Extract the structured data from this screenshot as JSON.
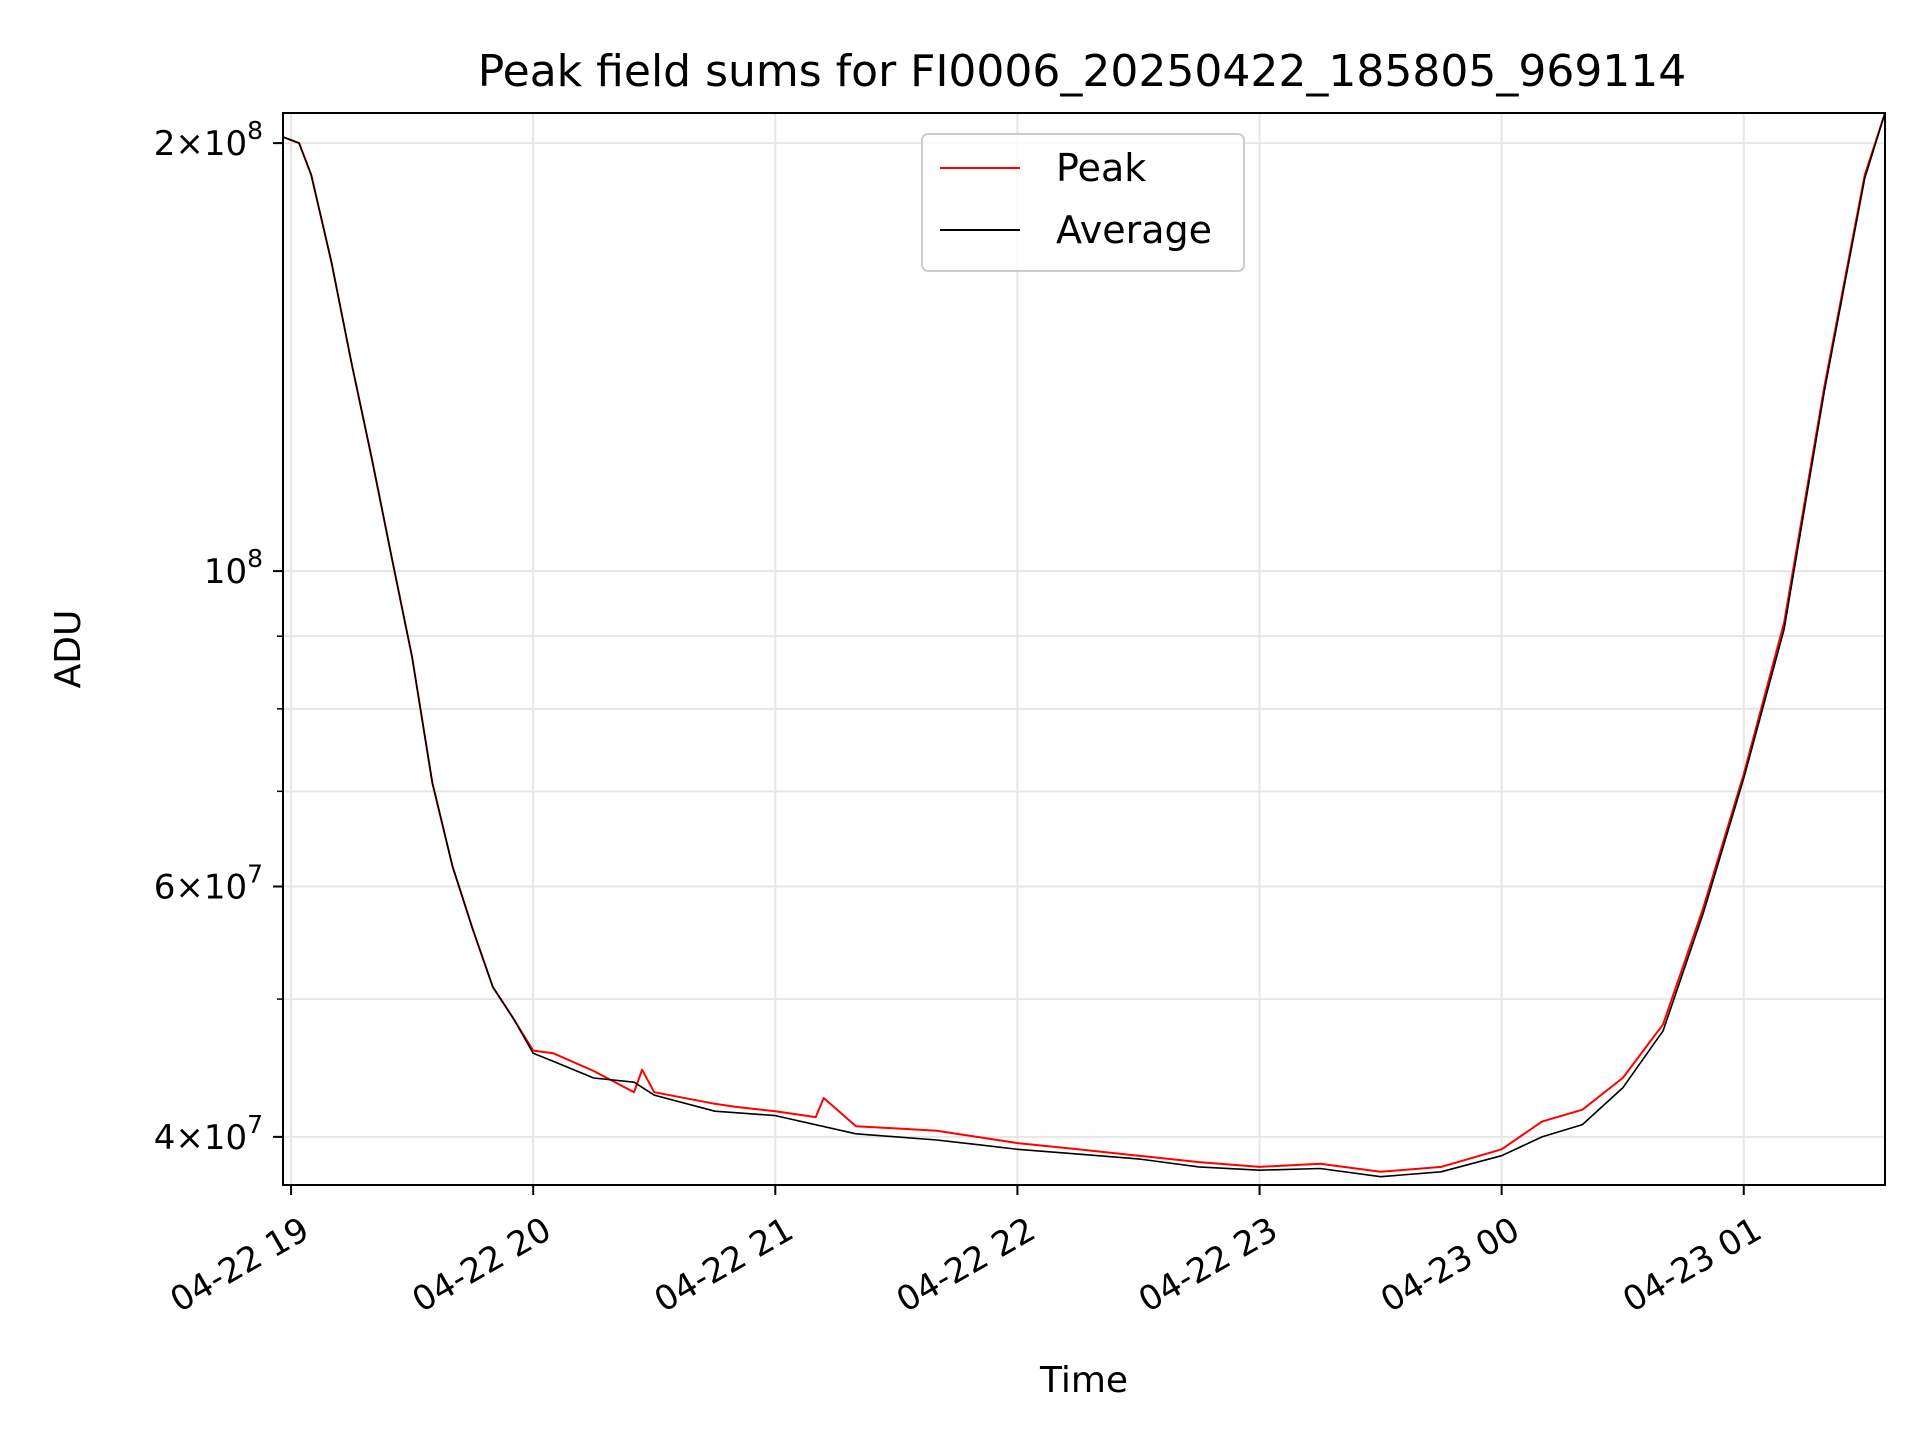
{
  "chart_data": {
    "type": "line",
    "title": "Peak field sums for FI0006_20250422_185805_969114",
    "xlabel": "Time",
    "ylabel": "ADU",
    "y_scale": "log",
    "grid": true,
    "legend_position": "top-center",
    "xlim": [
      "2025-04-22 18:58",
      "2025-04-23 01:35"
    ],
    "ylim": [
      37000000,
      210000000
    ],
    "x_ticks": [
      {
        "t": "2025-04-22 19:00",
        "label": "04-22 19"
      },
      {
        "t": "2025-04-22 20:00",
        "label": "04-22 20"
      },
      {
        "t": "2025-04-22 21:00",
        "label": "04-22 21"
      },
      {
        "t": "2025-04-22 22:00",
        "label": "04-22 22"
      },
      {
        "t": "2025-04-22 23:00",
        "label": "04-22 23"
      },
      {
        "t": "2025-04-23 00:00",
        "label": "04-23 00"
      },
      {
        "t": "2025-04-23 01:00",
        "label": "04-23 01"
      }
    ],
    "y_ticks": [
      {
        "value": 40000000,
        "mant": "4",
        "exp": "7"
      },
      {
        "value": 60000000,
        "mant": "6",
        "exp": "7"
      },
      {
        "value": 100000000,
        "mant": "",
        "exp": "8"
      },
      {
        "value": 200000000,
        "mant": "2",
        "exp": "8"
      }
    ],
    "y_minor_ticks": [
      50000000,
      70000000,
      80000000,
      90000000
    ],
    "series": [
      {
        "name": "Peak",
        "color": "#ff0000",
        "x": [
          "2025-04-22 18:58",
          "2025-04-22 19:02",
          "2025-04-22 19:05",
          "2025-04-22 19:10",
          "2025-04-22 19:15",
          "2025-04-22 19:20",
          "2025-04-22 19:25",
          "2025-04-22 19:30",
          "2025-04-22 19:35",
          "2025-04-22 19:40",
          "2025-04-22 19:45",
          "2025-04-22 19:50",
          "2025-04-22 19:55",
          "2025-04-22 20:00",
          "2025-04-22 20:05",
          "2025-04-22 20:15",
          "2025-04-22 20:25",
          "2025-04-22 20:27",
          "2025-04-22 20:30",
          "2025-04-22 20:45",
          "2025-04-22 20:50",
          "2025-04-22 21:00",
          "2025-04-22 21:10",
          "2025-04-22 21:12",
          "2025-04-22 21:20",
          "2025-04-22 21:40",
          "2025-04-22 21:50",
          "2025-04-22 22:00",
          "2025-04-22 22:15",
          "2025-04-22 22:30",
          "2025-04-22 22:45",
          "2025-04-22 23:00",
          "2025-04-22 23:15",
          "2025-04-22 23:30",
          "2025-04-22 23:45",
          "2025-04-23 00:00",
          "2025-04-23 00:10",
          "2025-04-23 00:20",
          "2025-04-23 00:30",
          "2025-04-23 00:40",
          "2025-04-23 00:50",
          "2025-04-23 01:00",
          "2025-04-23 01:10",
          "2025-04-23 01:20",
          "2025-04-23 01:30",
          "2025-04-23 01:35"
        ],
        "values": [
          202000000,
          200000000,
          190000000,
          165000000,
          140000000,
          120000000,
          102000000,
          87000000,
          71000000,
          62000000,
          56000000,
          51000000,
          48500000,
          46000000,
          45800000,
          44500000,
          43000000,
          44600000,
          43000000,
          42200000,
          42000000,
          41700000,
          41300000,
          42600000,
          40700000,
          40400000,
          40000000,
          39600000,
          39200000,
          38800000,
          38400000,
          38100000,
          38300000,
          37800000,
          38100000,
          39200000,
          41000000,
          41800000,
          44000000,
          48000000,
          58000000,
          72000000,
          92000000,
          135000000,
          190000000,
          210000000
        ]
      },
      {
        "name": "Average",
        "color": "#000000",
        "x": [
          "2025-04-22 18:58",
          "2025-04-22 19:02",
          "2025-04-22 19:05",
          "2025-04-22 19:10",
          "2025-04-22 19:15",
          "2025-04-22 19:20",
          "2025-04-22 19:25",
          "2025-04-22 19:30",
          "2025-04-22 19:35",
          "2025-04-22 19:40",
          "2025-04-22 19:45",
          "2025-04-22 19:50",
          "2025-04-22 19:55",
          "2025-04-22 20:00",
          "2025-04-22 20:05",
          "2025-04-22 20:15",
          "2025-04-22 20:25",
          "2025-04-22 20:30",
          "2025-04-22 20:45",
          "2025-04-22 21:00",
          "2025-04-22 21:20",
          "2025-04-22 21:40",
          "2025-04-22 21:50",
          "2025-04-22 22:00",
          "2025-04-22 22:15",
          "2025-04-22 22:30",
          "2025-04-22 22:45",
          "2025-04-22 23:00",
          "2025-04-22 23:15",
          "2025-04-22 23:30",
          "2025-04-22 23:45",
          "2025-04-23 00:00",
          "2025-04-23 00:10",
          "2025-04-23 00:20",
          "2025-04-23 00:30",
          "2025-04-23 00:40",
          "2025-04-23 00:50",
          "2025-04-23 01:00",
          "2025-04-23 01:10",
          "2025-04-23 01:20",
          "2025-04-23 01:30",
          "2025-04-23 01:35"
        ],
        "values": [
          202000000,
          200000000,
          190000000,
          165000000,
          140000000,
          120000000,
          102000000,
          87000000,
          71000000,
          62000000,
          56000000,
          51000000,
          48500000,
          45800000,
          45200000,
          44000000,
          43700000,
          42800000,
          41700000,
          41400000,
          40200000,
          39800000,
          39500000,
          39200000,
          38900000,
          38600000,
          38100000,
          37900000,
          38000000,
          37500000,
          37800000,
          38800000,
          40000000,
          40800000,
          43300000,
          47500000,
          57500000,
          71500000,
          91000000,
          134000000,
          189000000,
          210000000
        ]
      }
    ]
  }
}
